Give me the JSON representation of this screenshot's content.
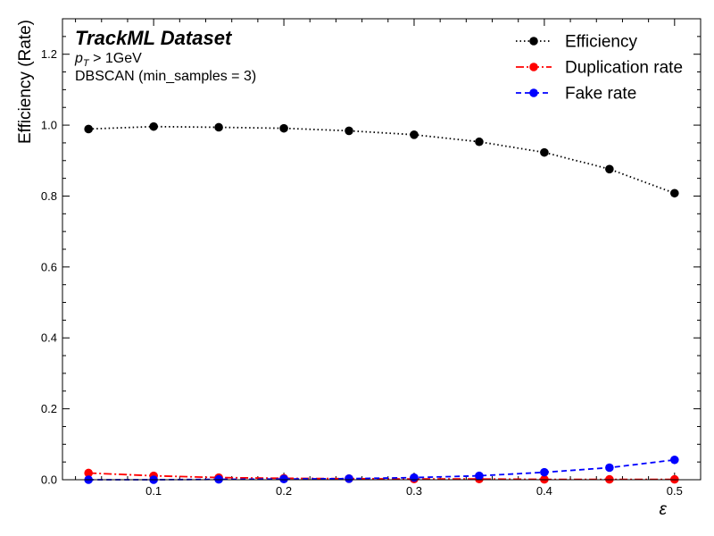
{
  "chart_data": {
    "type": "line",
    "x": [
      0.05,
      0.1,
      0.15,
      0.2,
      0.25,
      0.3,
      0.35,
      0.4,
      0.45,
      0.5
    ],
    "series": [
      {
        "name": "Efficiency",
        "values": [
          0.989,
          0.996,
          0.994,
          0.991,
          0.984,
          0.973,
          0.953,
          0.923,
          0.876,
          0.808
        ],
        "color": "#000000",
        "linestyle": "dotted",
        "marker": "circle"
      },
      {
        "name": "Duplication rate",
        "values": [
          0.019,
          0.011,
          0.006,
          0.004,
          0.003,
          0.002,
          0.002,
          0.001,
          0.001,
          0.001
        ],
        "color": "#ff0000",
        "linestyle": "dashdot",
        "marker": "circle"
      },
      {
        "name": "Fake rate",
        "values": [
          0.0,
          0.0,
          0.001,
          0.002,
          0.003,
          0.006,
          0.011,
          0.021,
          0.034,
          0.056
        ],
        "color": "#0000ff",
        "linestyle": "dashed",
        "marker": "circle"
      }
    ],
    "xlabel": "ε",
    "ylabel": "Efficiency (Rate)",
    "xlim": [
      0.03,
      0.52
    ],
    "ylim": [
      0.0,
      1.3
    ],
    "xticks": [
      "0.1",
      "0.2",
      "0.3",
      "0.4",
      "0.5"
    ],
    "xtick_values": [
      0.1,
      0.2,
      0.3,
      0.4,
      0.5
    ],
    "yticks": [
      "0.0",
      "0.2",
      "0.4",
      "0.6",
      "0.8",
      "1.0",
      "1.2"
    ],
    "ytick_values": [
      0.0,
      0.2,
      0.4,
      0.6,
      0.8,
      1.0,
      1.2
    ],
    "grid": false,
    "legend_position": "top-right",
    "annotations": {
      "title": "TrackML Dataset",
      "cut_symbol": "p",
      "cut_subscript": "T",
      "cut_rest": " > 1GeV",
      "algorithm": "DBSCAN (min_samples = 3)"
    }
  }
}
